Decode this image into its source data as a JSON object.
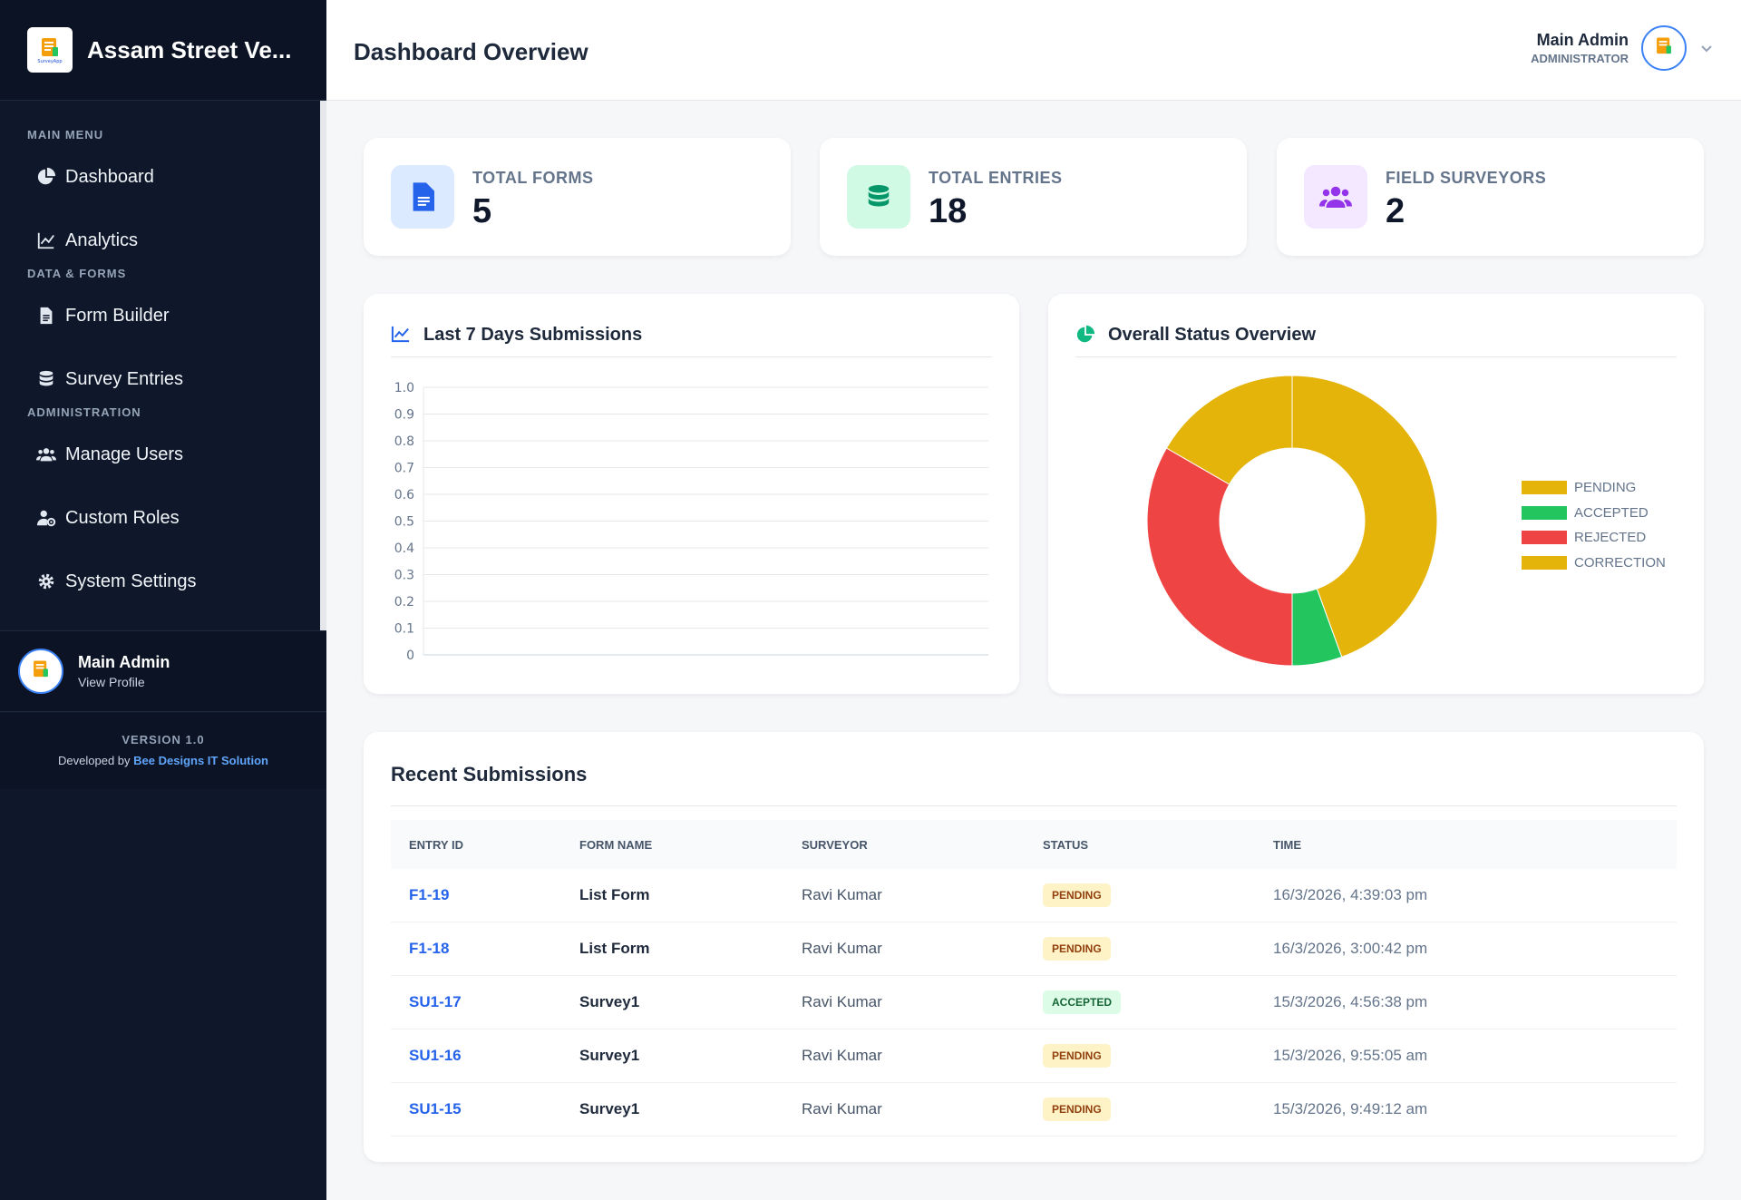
{
  "app": {
    "title": "Assam Street Ve...",
    "logo_text": "SurveyApp"
  },
  "sidebar": {
    "sections": [
      {
        "label": "MAIN MENU",
        "items": [
          {
            "label": "Dashboard",
            "icon": "pie-chart-icon"
          },
          {
            "label": "Analytics",
            "icon": "line-chart-icon"
          }
        ]
      },
      {
        "label": "DATA & FORMS",
        "items": [
          {
            "label": "Form Builder",
            "icon": "file-icon"
          },
          {
            "label": "Survey Entries",
            "icon": "database-icon"
          }
        ]
      },
      {
        "label": "ADMINISTRATION",
        "items": [
          {
            "label": "Manage Users",
            "icon": "users-icon"
          },
          {
            "label": "Custom Roles",
            "icon": "user-cog-icon"
          },
          {
            "label": "System Settings",
            "icon": "gear-icon"
          }
        ]
      }
    ],
    "user": {
      "name": "Main Admin",
      "link": "View Profile"
    },
    "footer": {
      "version": "VERSION 1.0",
      "developed_by": "Developed by",
      "company": "Bee Designs IT Solution"
    }
  },
  "header": {
    "title": "Dashboard Overview",
    "user_name": "Main Admin",
    "user_role": "ADMINISTRATOR"
  },
  "stats": [
    {
      "label": "TOTAL FORMS",
      "value": "5",
      "icon": "document-icon",
      "bg": "#dbeafe",
      "fg": "#2563eb"
    },
    {
      "label": "TOTAL ENTRIES",
      "value": "18",
      "icon": "database-icon",
      "bg": "#d1fae5",
      "fg": "#059669"
    },
    {
      "label": "FIELD SURVEYORS",
      "value": "2",
      "icon": "users-icon",
      "bg": "#f3e8ff",
      "fg": "#9333ea"
    }
  ],
  "line_panel": {
    "title": "Last 7 Days Submissions"
  },
  "donut_panel": {
    "title": "Overall Status Overview"
  },
  "chart_data": [
    {
      "type": "line",
      "title": "Last 7 Days Submissions",
      "y_ticks": [
        "1.0",
        "0.9",
        "0.8",
        "0.7",
        "0.6",
        "0.5",
        "0.4",
        "0.3",
        "0.2",
        "0.1",
        "0"
      ],
      "ylim": [
        0,
        1
      ],
      "series": [],
      "grid": true
    },
    {
      "type": "pie",
      "title": "Overall Status Overview",
      "donut": true,
      "categories": [
        "PENDING",
        "ACCEPTED",
        "REJECTED",
        "CORRECTION"
      ],
      "values": [
        8,
        1,
        6,
        3
      ],
      "colors": [
        "#e5b40a",
        "#22c55e",
        "#ef4444",
        "#e5b40a"
      ],
      "legend": "right"
    }
  ],
  "recent": {
    "title": "Recent Submissions",
    "columns": [
      "ENTRY ID",
      "FORM NAME",
      "SURVEYOR",
      "STATUS",
      "TIME"
    ],
    "rows": [
      {
        "id": "F1-19",
        "form": "List Form",
        "surveyor": "Ravi Kumar",
        "status": "PENDING",
        "time": "16/3/2026, 4:39:03 pm"
      },
      {
        "id": "F1-18",
        "form": "List Form",
        "surveyor": "Ravi Kumar",
        "status": "PENDING",
        "time": "16/3/2026, 3:00:42 pm"
      },
      {
        "id": "SU1-17",
        "form": "Survey1",
        "surveyor": "Ravi Kumar",
        "status": "ACCEPTED",
        "time": "15/3/2026, 4:56:38 pm"
      },
      {
        "id": "SU1-16",
        "form": "Survey1",
        "surveyor": "Ravi Kumar",
        "status": "PENDING",
        "time": "15/3/2026, 9:55:05 am"
      },
      {
        "id": "SU1-15",
        "form": "Survey1",
        "surveyor": "Ravi Kumar",
        "status": "PENDING",
        "time": "15/3/2026, 9:49:12 am"
      }
    ]
  }
}
